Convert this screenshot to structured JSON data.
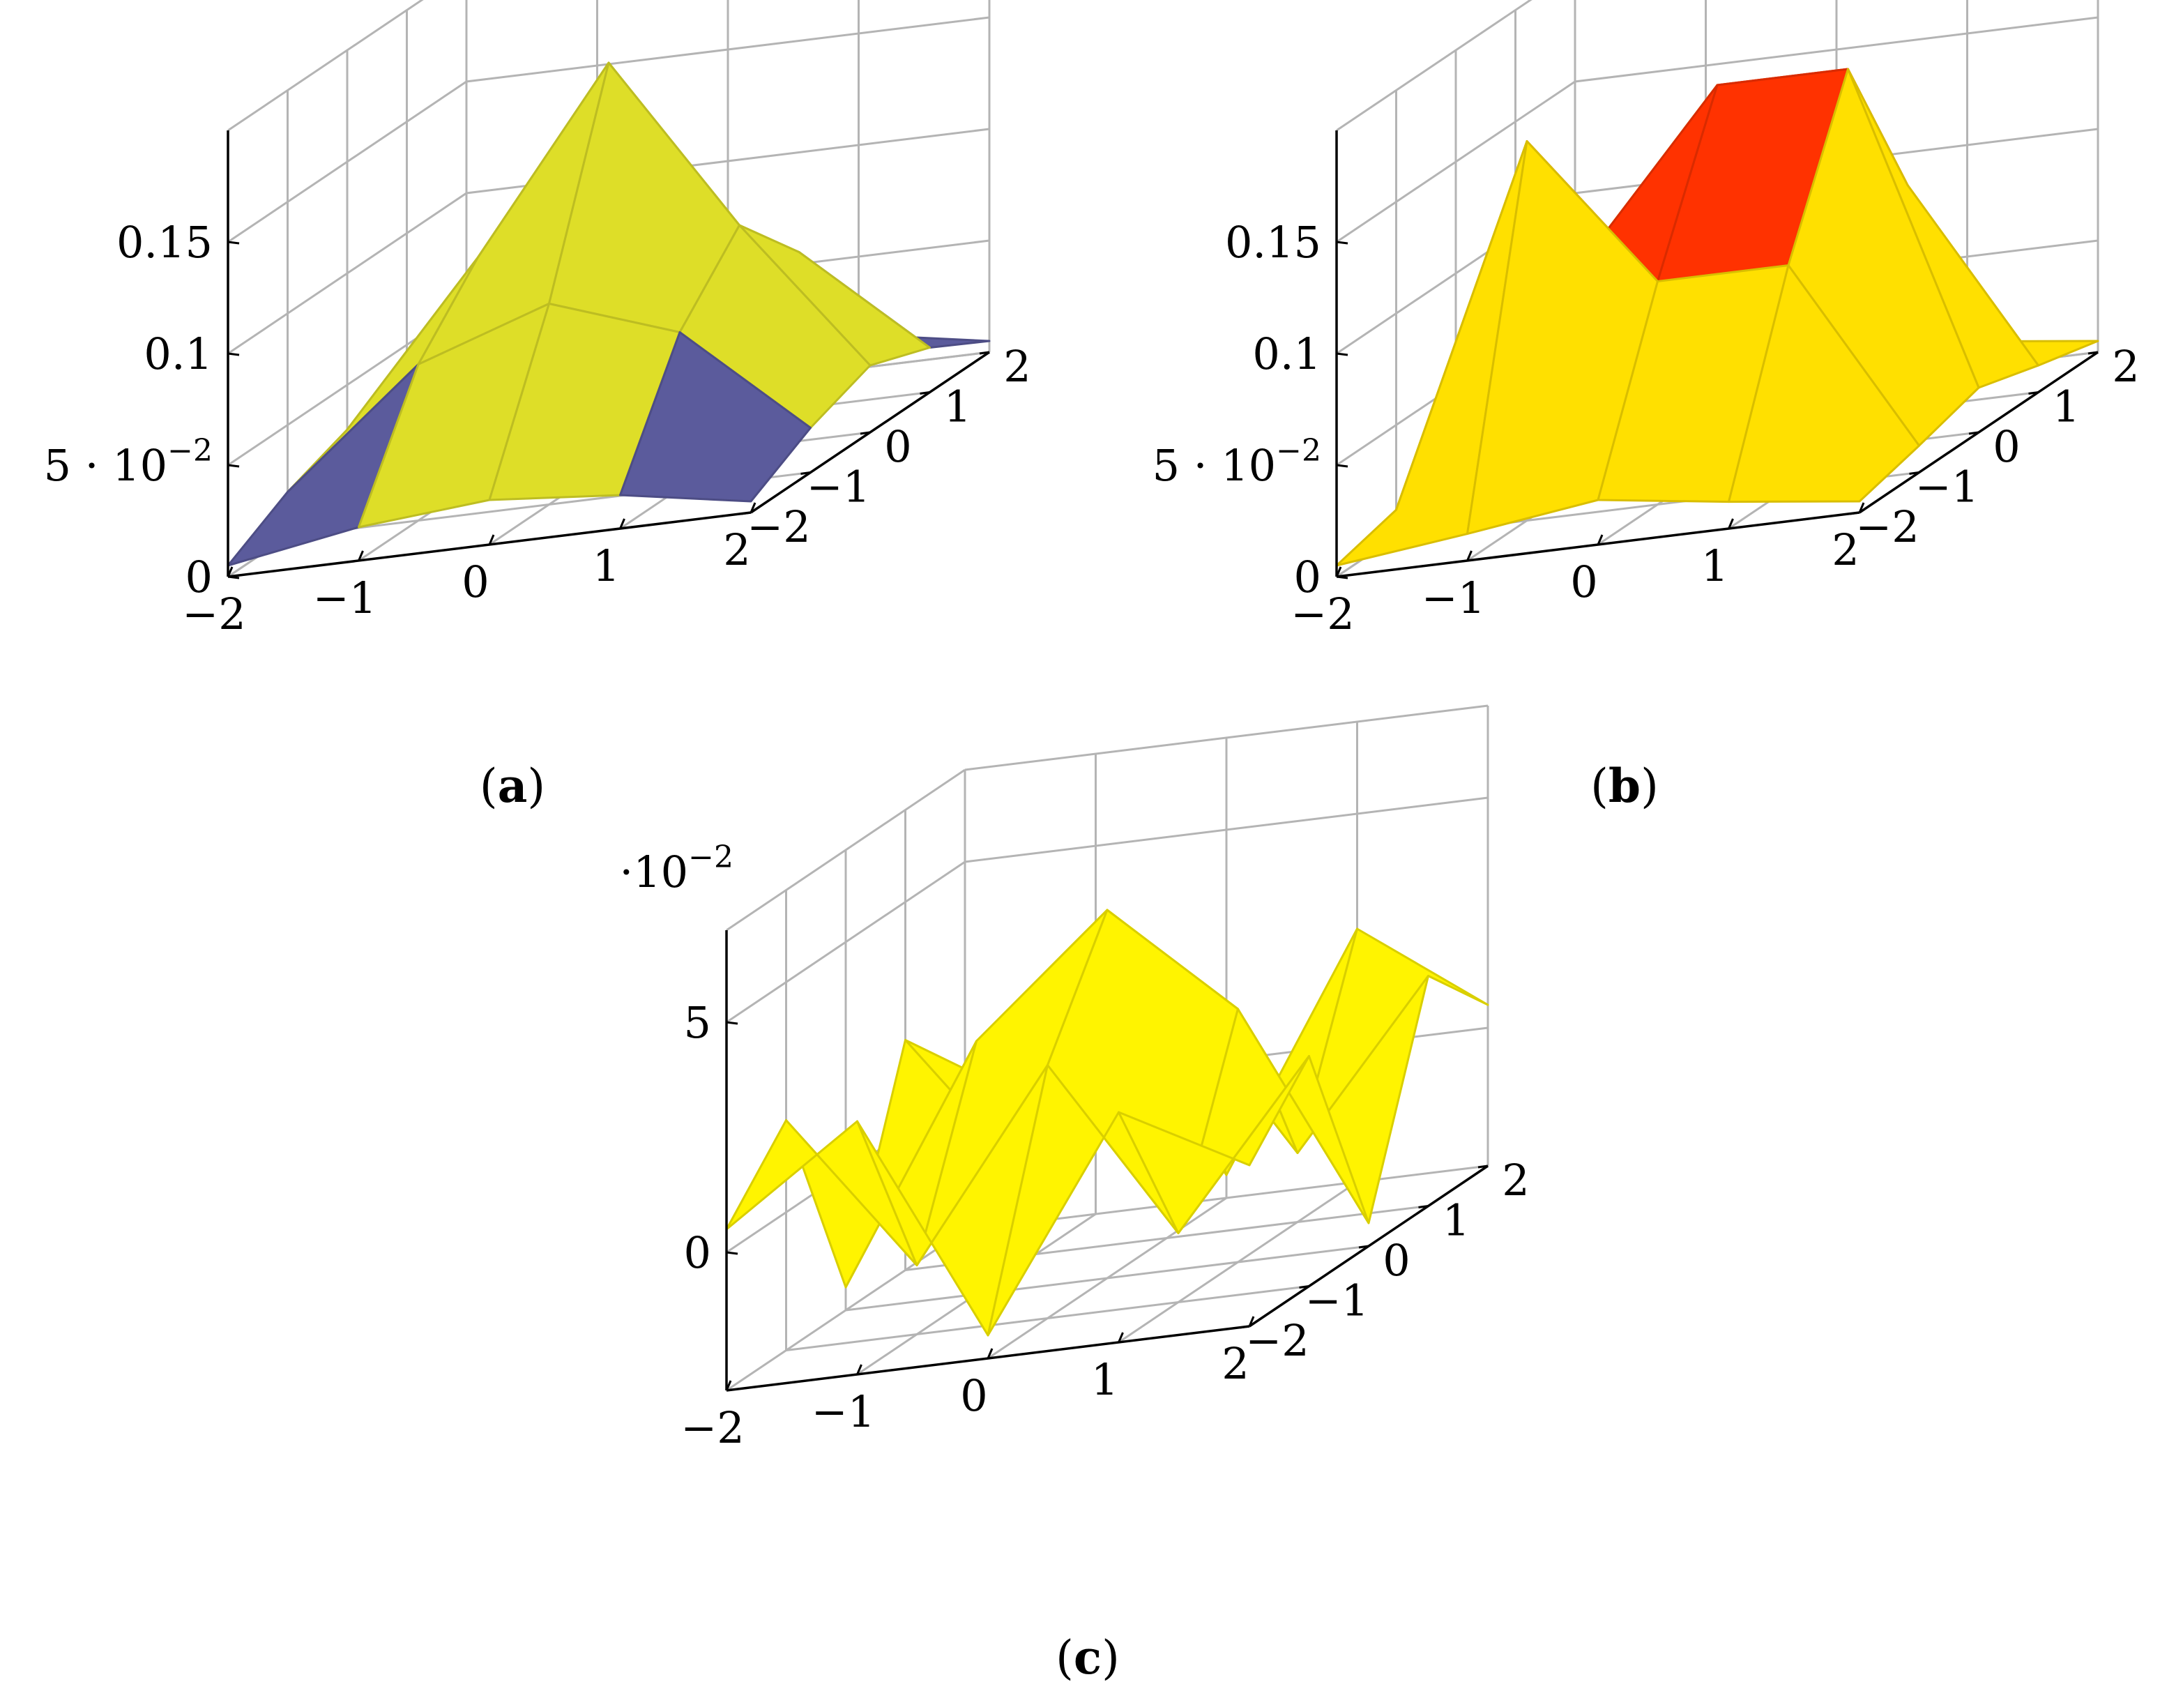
{
  "chart_data": [
    {
      "type": "surface3d",
      "caption": "(a)",
      "x": [
        -2,
        -1,
        0,
        1,
        2
      ],
      "y": [
        -2,
        -1,
        0,
        1,
        2
      ],
      "x_ticks": [
        "−2",
        "−1",
        "0",
        "1",
        "2"
      ],
      "y_ticks": [
        "−2",
        "−1",
        "0",
        "1",
        "2"
      ],
      "z_ticks": [
        {
          "value": 0,
          "label": "0"
        },
        {
          "value": 0.05,
          "label": "5 · 10",
          "exp": "−2"
        },
        {
          "value": 0.1,
          "label": "0.1"
        },
        {
          "value": 0.15,
          "label": "0.15"
        }
      ],
      "zlim": [
        0,
        0.2
      ],
      "z": [
        [
          0.005,
          0.015,
          0.02,
          0.015,
          0.005
        ],
        [
          0.02,
          0.07,
          0.09,
          0.07,
          0.02
        ],
        [
          0.03,
          0.1,
          0.18,
          0.1,
          0.03
        ],
        [
          0.02,
          0.07,
          0.09,
          0.07,
          0.02
        ],
        [
          0.005,
          0.015,
          0.02,
          0.015,
          0.005
        ]
      ],
      "colormap": [
        "#5b5b9c",
        "#dede28",
        "#ff8c00"
      ],
      "grid": true
    },
    {
      "type": "surface3d",
      "caption": "(b)",
      "x": [
        -2,
        -1,
        0,
        1,
        2
      ],
      "y": [
        -2,
        -1,
        0,
        1,
        2
      ],
      "x_ticks": [
        "−2",
        "−1",
        "0",
        "1",
        "2"
      ],
      "y_ticks": [
        "−2",
        "−1",
        "0",
        "1",
        "2"
      ],
      "z_ticks": [
        {
          "value": 0,
          "label": "0"
        },
        {
          "value": 0.05,
          "label": "5 · 10",
          "exp": "−2"
        },
        {
          "value": 0.1,
          "label": "0.1"
        },
        {
          "value": 0.15,
          "label": "0.15"
        }
      ],
      "zlim": [
        0,
        0.2
      ],
      "z": [
        [
          0.005,
          0.012,
          0.02,
          0.012,
          0.005
        ],
        [
          0.012,
          0.17,
          0.1,
          0.1,
          0.012
        ],
        [
          0.02,
          0.1,
          0.17,
          0.17,
          0.02
        ],
        [
          0.012,
          0.1,
          0.1,
          0.1,
          0.012
        ],
        [
          0.005,
          0.012,
          0.02,
          0.012,
          0.005
        ]
      ],
      "colormap": [
        "#5b5b9c",
        "#ffe000",
        "#ff3200"
      ],
      "grid": true
    },
    {
      "type": "surface3d",
      "caption": "(c)",
      "x": [
        -2,
        -1,
        0,
        1,
        2
      ],
      "y": [
        -2,
        -1,
        0,
        1,
        2
      ],
      "x_ticks": [
        "−2",
        "−1",
        "0",
        "1",
        "2"
      ],
      "y_ticks": [
        "−2",
        "−1",
        "0",
        "1",
        "2"
      ],
      "z_ticks": [
        {
          "value": 0,
          "label": "0"
        },
        {
          "value": 5,
          "label": "5"
        }
      ],
      "z_multiplier": {
        "label": "·10",
        "exp": "−2"
      },
      "zlim": [
        -3,
        7
      ],
      "z": [
        [
          0.5,
          2.5,
          -2.5,
          2.0,
          0.5
        ],
        [
          2.0,
          -1.5,
          2.5,
          -1.5,
          2.0
        ],
        [
          -2.5,
          2.5,
          5.0,
          2.5,
          -2.5
        ],
        [
          2.0,
          -1.5,
          2.5,
          -1.5,
          2.0
        ],
        [
          0.5,
          2.0,
          -2.5,
          2.5,
          0.5
        ]
      ],
      "colormap": [
        "#ffc800",
        "#ffff00"
      ],
      "grid": true
    }
  ]
}
